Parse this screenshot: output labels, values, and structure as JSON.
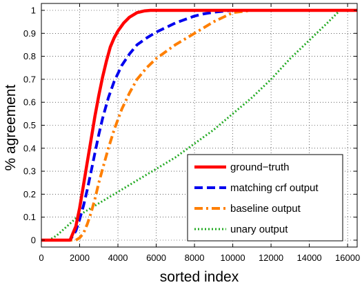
{
  "chart_data": {
    "type": "line",
    "xlabel": "sorted index",
    "ylabel": "% agreement",
    "xlim": [
      0,
      16500
    ],
    "ylim": [
      -0.03,
      1.03
    ],
    "xticks": [
      0,
      2000,
      4000,
      6000,
      8000,
      10000,
      12000,
      14000,
      16000
    ],
    "yticks": [
      0,
      0.1,
      0.2,
      0.3,
      0.4,
      0.5,
      0.6,
      0.7,
      0.8,
      0.9,
      1
    ],
    "xtick_labels": [
      "0",
      "2000",
      "4000",
      "6000",
      "8000",
      "10000",
      "12000",
      "14000",
      "16000"
    ],
    "ytick_labels": [
      "0",
      "0.1",
      "0.2",
      "0.3",
      "0.4",
      "0.5",
      "0.6",
      "0.7",
      "0.8",
      "0.9",
      "1"
    ],
    "grid": true,
    "legend_position": "bottom-right",
    "series": [
      {
        "name": "ground−truth",
        "color": "#ff0000",
        "style": "solid",
        "x": [
          0,
          1500,
          1800,
          2000,
          2200,
          2400,
          2600,
          2800,
          3000,
          3200,
          3400,
          3600,
          3800,
          4000,
          4300,
          4600,
          5000,
          5400,
          5700,
          6500,
          8000,
          10000,
          12000,
          14000,
          16500
        ],
        "y": [
          0,
          0,
          0.06,
          0.14,
          0.24,
          0.34,
          0.44,
          0.54,
          0.63,
          0.71,
          0.78,
          0.84,
          0.88,
          0.91,
          0.945,
          0.97,
          0.99,
          0.998,
          1,
          1,
          1,
          1,
          1,
          1,
          1
        ]
      },
      {
        "name": "matching crf output",
        "color": "#0000ee",
        "style": "dashed",
        "x": [
          0,
          1500,
          1800,
          2000,
          2200,
          2400,
          2600,
          2800,
          3000,
          3200,
          3500,
          3800,
          4200,
          4600,
          5000,
          5500,
          6000,
          6500,
          7000,
          7500,
          8000,
          8500,
          9000,
          10000,
          11000,
          12000,
          14000,
          16500
        ],
        "y": [
          0,
          0,
          0.04,
          0.09,
          0.15,
          0.22,
          0.3,
          0.38,
          0.46,
          0.53,
          0.62,
          0.69,
          0.76,
          0.81,
          0.85,
          0.88,
          0.905,
          0.925,
          0.945,
          0.96,
          0.975,
          0.985,
          0.992,
          1,
          1,
          1,
          1,
          1
        ]
      },
      {
        "name": "baseline output",
        "color": "#ff7f00",
        "style": "dashdot",
        "x": [
          0,
          1800,
          2000,
          2200,
          2400,
          2600,
          2800,
          3000,
          3200,
          3500,
          3800,
          4200,
          4600,
          5000,
          5500,
          6000,
          6500,
          7000,
          7500,
          8000,
          8500,
          9000,
          9500,
          10000,
          11000,
          12000,
          14000,
          16500
        ],
        "y": [
          0,
          0,
          0.01,
          0.03,
          0.07,
          0.12,
          0.18,
          0.25,
          0.31,
          0.4,
          0.48,
          0.57,
          0.64,
          0.7,
          0.75,
          0.79,
          0.82,
          0.85,
          0.875,
          0.9,
          0.925,
          0.95,
          0.97,
          0.99,
          1,
          1,
          1,
          1
        ]
      },
      {
        "name": "unary output",
        "color": "#22aa22",
        "style": "dotted",
        "x": [
          0,
          400,
          800,
          1200,
          1600,
          2000,
          3000,
          4000,
          5000,
          6000,
          7000,
          8000,
          9000,
          10000,
          11000,
          12000,
          13000,
          14000,
          15000,
          15600,
          16500
        ],
        "y": [
          0,
          0,
          0.02,
          0.05,
          0.08,
          0.11,
          0.16,
          0.21,
          0.26,
          0.31,
          0.36,
          0.42,
          0.48,
          0.55,
          0.62,
          0.7,
          0.79,
          0.87,
          0.95,
          1,
          1
        ]
      }
    ]
  }
}
